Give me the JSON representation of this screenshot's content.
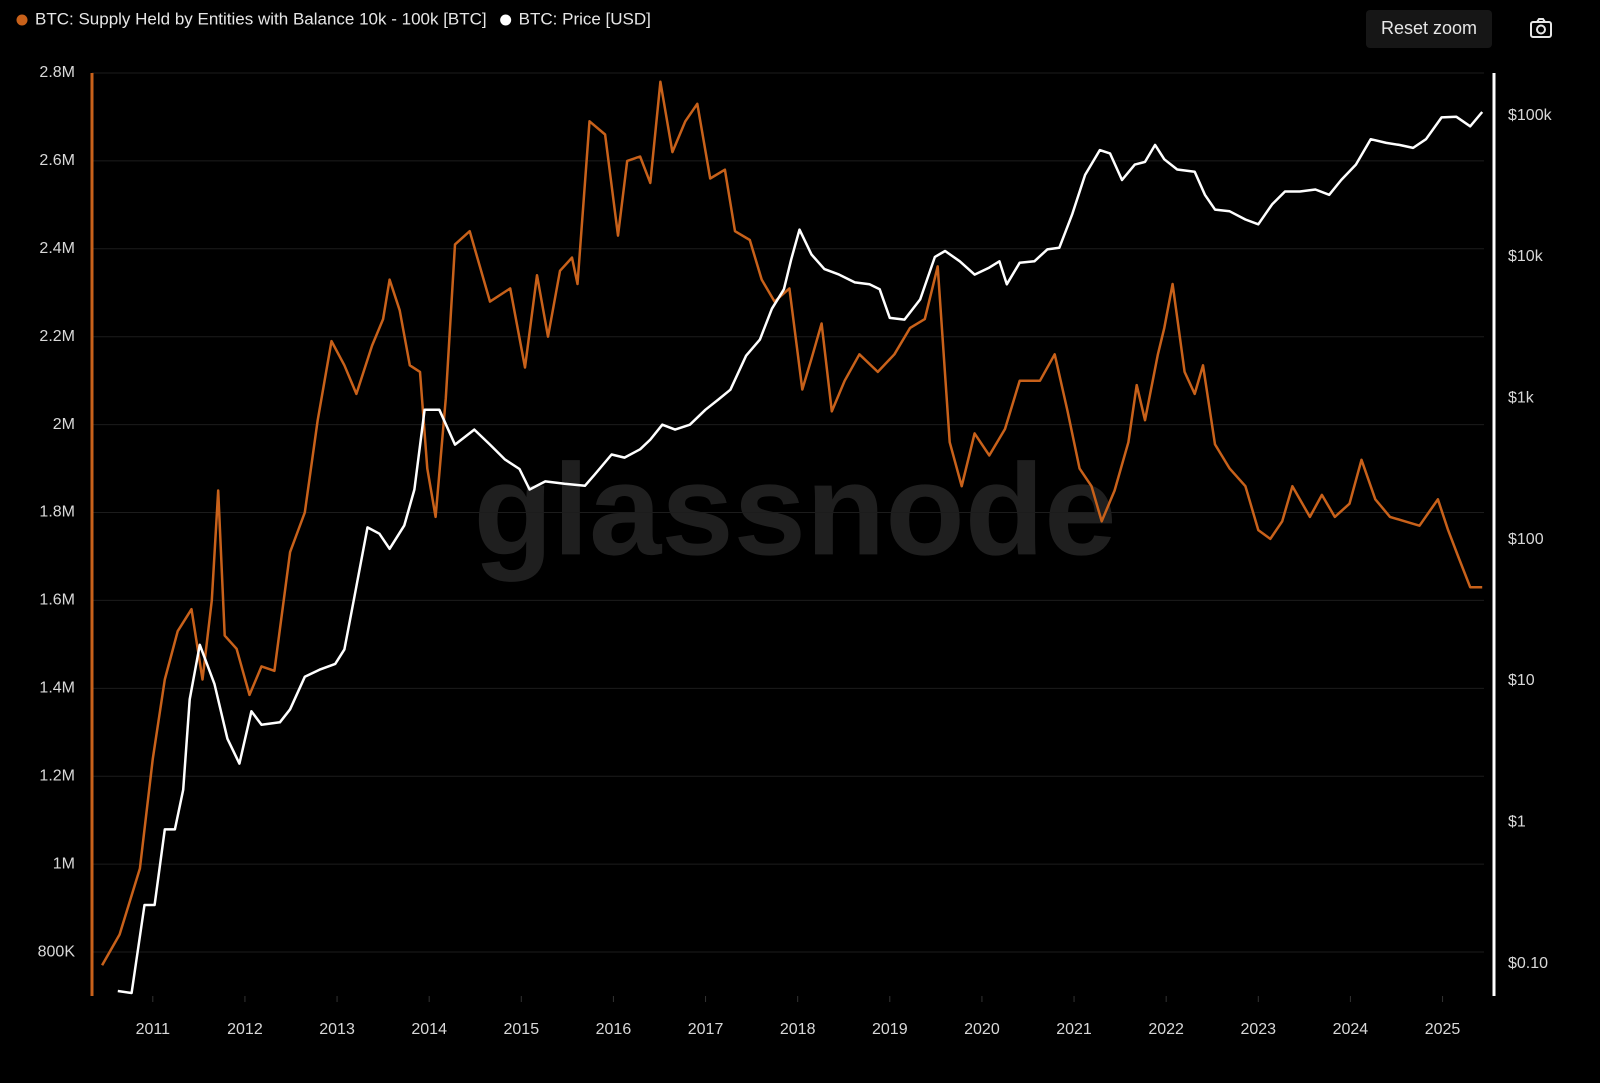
{
  "chart_data": {
    "type": "line",
    "watermark": "glassnode",
    "button": "Reset zoom",
    "background": "#000000",
    "grid": true,
    "xlim": [
      2010.34,
      2025.45
    ],
    "xticks": [
      2011,
      2012,
      2013,
      2014,
      2015,
      2016,
      2017,
      2018,
      2019,
      2020,
      2021,
      2022,
      2023,
      2024,
      2025
    ],
    "ylim": [
      700000,
      2800000
    ],
    "yticks": [
      {
        "value": 800000,
        "label": "800K"
      },
      {
        "value": 1000000,
        "label": "1M"
      },
      {
        "value": 1200000,
        "label": "1.2M"
      },
      {
        "value": 1400000,
        "label": "1.4M"
      },
      {
        "value": 1600000,
        "label": "1.6M"
      },
      {
        "value": 1800000,
        "label": "1.8M"
      },
      {
        "value": 2000000,
        "label": "2M"
      },
      {
        "value": 2200000,
        "label": "2.2M"
      },
      {
        "value": 2400000,
        "label": "2.4M"
      },
      {
        "value": 2600000,
        "label": "2.6M"
      },
      {
        "value": 2800000,
        "label": "2.8M"
      }
    ],
    "y2log": true,
    "y2lim": [
      0.059,
      200000
    ],
    "y2ticks": [
      {
        "value": 0.1,
        "label": "$0.10"
      },
      {
        "value": 1,
        "label": "$1"
      },
      {
        "value": 10,
        "label": "$10"
      },
      {
        "value": 100,
        "label": "$100"
      },
      {
        "value": 1000,
        "label": "$1k"
      },
      {
        "value": 10000,
        "label": "$10k"
      },
      {
        "value": 100000,
        "label": "$100k"
      }
    ],
    "series": [
      {
        "name": "BTC: Supply Held by Entities with Balance 10k - 100k [BTC]",
        "color": "#c8611a",
        "x": [
          2010.45,
          2010.64,
          2010.86,
          2011.0,
          2011.13,
          2011.27,
          2011.42,
          2011.54,
          2011.64,
          2011.71,
          2011.78,
          2011.91,
          2012.05,
          2012.18,
          2012.32,
          2012.49,
          2012.65,
          2012.79,
          2012.94,
          2013.08,
          2013.21,
          2013.38,
          2013.5,
          2013.57,
          2013.68,
          2013.79,
          2013.9,
          2013.98,
          2014.07,
          2014.18,
          2014.28,
          2014.44,
          2014.66,
          2014.88,
          2015.04,
          2015.17,
          2015.29,
          2015.42,
          2015.55,
          2015.61,
          2015.74,
          2015.91,
          2016.05,
          2016.15,
          2016.29,
          2016.4,
          2016.51,
          2016.64,
          2016.78,
          2016.91,
          2017.05,
          2017.21,
          2017.32,
          2017.48,
          2017.61,
          2017.75,
          2017.91,
          2018.05,
          2018.15,
          2018.26,
          2018.37,
          2018.51,
          2018.67,
          2018.87,
          2019.05,
          2019.22,
          2019.38,
          2019.52,
          2019.65,
          2019.78,
          2019.92,
          2020.08,
          2020.25,
          2020.41,
          2020.63,
          2020.79,
          2020.93,
          2021.06,
          2021.19,
          2021.3,
          2021.44,
          2021.59,
          2021.68,
          2021.77,
          2021.91,
          2021.98,
          2022.07,
          2022.2,
          2022.31,
          2022.4,
          2022.53,
          2022.69,
          2022.86,
          2023.0,
          2023.13,
          2023.26,
          2023.37,
          2023.56,
          2023.69,
          2023.83,
          2023.99,
          2024.12,
          2024.27,
          2024.43,
          2024.59,
          2024.75,
          2024.95,
          2025.06,
          2025.17,
          2025.3,
          2025.43
        ],
        "values": [
          770000,
          840000,
          990000,
          1240000,
          1420000,
          1530000,
          1580000,
          1420000,
          1600000,
          1850000,
          1520000,
          1490000,
          1385000,
          1450000,
          1440000,
          1710000,
          1800000,
          2010000,
          2190000,
          2135000,
          2070000,
          2180000,
          2240000,
          2330000,
          2260000,
          2135000,
          2120000,
          1900000,
          1790000,
          2060000,
          2410000,
          2440000,
          2280000,
          2310000,
          2130000,
          2340000,
          2200000,
          2350000,
          2380000,
          2320000,
          2690000,
          2660000,
          2430000,
          2600000,
          2610000,
          2550000,
          2780000,
          2620000,
          2690000,
          2730000,
          2560000,
          2580000,
          2440000,
          2420000,
          2330000,
          2280000,
          2310000,
          2080000,
          2150000,
          2230000,
          2030000,
          2100000,
          2160000,
          2120000,
          2160000,
          2220000,
          2240000,
          2360000,
          1960000,
          1860000,
          1980000,
          1930000,
          1990000,
          2100000,
          2100000,
          2160000,
          2030000,
          1900000,
          1860000,
          1780000,
          1850000,
          1960000,
          2090000,
          2010000,
          2160000,
          2220000,
          2320000,
          2120000,
          2070000,
          2135000,
          1955000,
          1900000,
          1860000,
          1760000,
          1740000,
          1780000,
          1860000,
          1790000,
          1840000,
          1790000,
          1820000,
          1920000,
          1830000,
          1790000,
          1780000,
          1770000,
          1830000,
          1760000,
          1700000,
          1630000,
          1630000
        ]
      },
      {
        "name": "BTC: Price [USD]",
        "color": "#ffffff",
        "axis": "y2",
        "x": [
          2010.62,
          2010.77,
          2010.91,
          2011.02,
          2011.13,
          2011.24,
          2011.33,
          2011.4,
          2011.51,
          2011.67,
          2011.81,
          2011.94,
          2012.07,
          2012.18,
          2012.38,
          2012.49,
          2012.65,
          2012.81,
          2012.98,
          2013.08,
          2013.19,
          2013.33,
          2013.46,
          2013.57,
          2013.73,
          2013.84,
          2013.95,
          2014.11,
          2014.28,
          2014.49,
          2014.66,
          2014.82,
          2014.98,
          2015.09,
          2015.26,
          2015.47,
          2015.69,
          2015.8,
          2015.98,
          2016.12,
          2016.29,
          2016.4,
          2016.53,
          2016.67,
          2016.83,
          2017.0,
          2017.14,
          2017.27,
          2017.44,
          2017.59,
          2017.72,
          2017.85,
          2017.93,
          2018.02,
          2018.15,
          2018.29,
          2018.45,
          2018.62,
          2018.78,
          2018.89,
          2019.0,
          2019.16,
          2019.33,
          2019.49,
          2019.6,
          2019.76,
          2019.92,
          2020.08,
          2020.19,
          2020.27,
          2020.41,
          2020.57,
          2020.71,
          2020.84,
          2020.98,
          2021.12,
          2021.28,
          2021.39,
          2021.52,
          2021.66,
          2021.77,
          2021.88,
          2021.98,
          2022.12,
          2022.31,
          2022.42,
          2022.53,
          2022.69,
          2022.86,
          2023.0,
          2023.15,
          2023.29,
          2023.45,
          2023.62,
          2023.77,
          2023.9,
          2024.06,
          2024.22,
          2024.39,
          2024.53,
          2024.68,
          2024.82,
          2024.99,
          2025.15,
          2025.3,
          2025.43
        ],
        "values": [
          0.064,
          0.062,
          0.26,
          0.26,
          0.89,
          0.89,
          1.7,
          7.4,
          18,
          9.5,
          3.9,
          2.6,
          6.1,
          4.9,
          5.1,
          6.3,
          10.7,
          12,
          13.2,
          16.7,
          40,
          122,
          110,
          86,
          126,
          226,
          830,
          830,
          470,
          600,
          470,
          370,
          316,
          226,
          258,
          248,
          240,
          290,
          400,
          380,
          435,
          510,
          650,
          600,
          650,
          830,
          980,
          1150,
          2000,
          2600,
          4300,
          5900,
          9600,
          15600,
          10400,
          8200,
          7500,
          6600,
          6400,
          5900,
          3700,
          3600,
          5000,
          10000,
          11000,
          9300,
          7500,
          8400,
          9300,
          6400,
          9100,
          9300,
          11300,
          11600,
          20000,
          38000,
          57000,
          54000,
          35000,
          45000,
          47000,
          62000,
          49000,
          41500,
          40000,
          27500,
          21600,
          21000,
          18400,
          17000,
          23500,
          29000,
          29000,
          30000,
          27500,
          35000,
          45000,
          68000,
          64000,
          62000,
          59000,
          68000,
          97000,
          98000,
          84000,
          106000
        ]
      }
    ]
  }
}
